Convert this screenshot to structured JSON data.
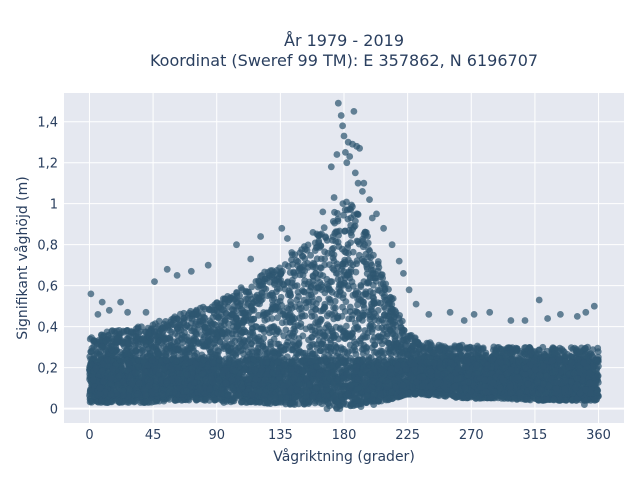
{
  "chart_data": {
    "type": "scatter",
    "title_lines": [
      "År 1979 - 2019",
      "Koordinat (Sweref 99 TM): E 357862, N 6196707"
    ],
    "xlabel": "Vågriktning (grader)",
    "ylabel": "Signifikant våghöjd (m)",
    "xlim": [
      -18,
      378
    ],
    "ylim": [
      -0.07,
      1.54
    ],
    "xticks": [
      0,
      45,
      90,
      135,
      180,
      225,
      270,
      315,
      360
    ],
    "xtick_labels": [
      "0",
      "45",
      "90",
      "135",
      "180",
      "225",
      "270",
      "315",
      "360"
    ],
    "yticks": [
      0,
      0.2,
      0.4,
      0.6,
      0.8,
      1.0,
      1.2,
      1.4
    ],
    "ytick_labels": [
      "0",
      "0,2",
      "0,4",
      "0,6",
      "0,8",
      "1",
      "1,2",
      "1,4"
    ],
    "marker_color": "#2e5670",
    "plot_bg": "#e5e8f0",
    "grid": true,
    "envelope": {
      "x": [
        0,
        15,
        30,
        45,
        60,
        75,
        90,
        105,
        120,
        135,
        150,
        160,
        170,
        175,
        180,
        185,
        190,
        200,
        210,
        220,
        225,
        235,
        250,
        270,
        290,
        315,
        340,
        360
      ],
      "y_upper": [
        0.35,
        0.38,
        0.4,
        0.42,
        0.45,
        0.49,
        0.52,
        0.58,
        0.65,
        0.72,
        0.8,
        0.85,
        0.92,
        0.98,
        1.02,
        1.0,
        0.95,
        0.8,
        0.62,
        0.45,
        0.37,
        0.33,
        0.31,
        0.31,
        0.3,
        0.3,
        0.3,
        0.3
      ],
      "y_lower": [
        0.03,
        0.03,
        0.03,
        0.03,
        0.04,
        0.04,
        0.04,
        0.03,
        0.03,
        0.02,
        0.02,
        0.02,
        0.01,
        0.0,
        0.01,
        0.01,
        0.02,
        0.03,
        0.04,
        0.06,
        0.07,
        0.07,
        0.06,
        0.05,
        0.05,
        0.04,
        0.04,
        0.04
      ]
    },
    "outliers": [
      {
        "x": 1,
        "y": 0.56
      },
      {
        "x": 6,
        "y": 0.46
      },
      {
        "x": 9,
        "y": 0.52
      },
      {
        "x": 14,
        "y": 0.48
      },
      {
        "x": 22,
        "y": 0.52
      },
      {
        "x": 27,
        "y": 0.47
      },
      {
        "x": 40,
        "y": 0.47
      },
      {
        "x": 46,
        "y": 0.62
      },
      {
        "x": 55,
        "y": 0.68
      },
      {
        "x": 62,
        "y": 0.65
      },
      {
        "x": 72,
        "y": 0.67
      },
      {
        "x": 84,
        "y": 0.7
      },
      {
        "x": 104,
        "y": 0.8
      },
      {
        "x": 114,
        "y": 0.73
      },
      {
        "x": 121,
        "y": 0.84
      },
      {
        "x": 136,
        "y": 0.88
      },
      {
        "x": 140,
        "y": 0.83
      },
      {
        "x": 158,
        "y": 0.86
      },
      {
        "x": 165,
        "y": 0.96
      },
      {
        "x": 171,
        "y": 1.18
      },
      {
        "x": 173,
        "y": 1.03
      },
      {
        "x": 175,
        "y": 1.24
      },
      {
        "x": 176,
        "y": 1.49
      },
      {
        "x": 178,
        "y": 1.43
      },
      {
        "x": 179,
        "y": 1.38
      },
      {
        "x": 180,
        "y": 1.33
      },
      {
        "x": 181,
        "y": 1.25
      },
      {
        "x": 182,
        "y": 1.2
      },
      {
        "x": 183,
        "y": 1.3
      },
      {
        "x": 184,
        "y": 1.23
      },
      {
        "x": 186,
        "y": 1.29
      },
      {
        "x": 187,
        "y": 1.45
      },
      {
        "x": 188,
        "y": 1.15
      },
      {
        "x": 189,
        "y": 1.28
      },
      {
        "x": 190,
        "y": 1.1
      },
      {
        "x": 191,
        "y": 1.27
      },
      {
        "x": 193,
        "y": 1.06
      },
      {
        "x": 194,
        "y": 1.1
      },
      {
        "x": 198,
        "y": 1.02
      },
      {
        "x": 200,
        "y": 0.93
      },
      {
        "x": 203,
        "y": 0.95
      },
      {
        "x": 208,
        "y": 0.88
      },
      {
        "x": 214,
        "y": 0.8
      },
      {
        "x": 219,
        "y": 0.72
      },
      {
        "x": 222,
        "y": 0.66
      },
      {
        "x": 226,
        "y": 0.58
      },
      {
        "x": 231,
        "y": 0.51
      },
      {
        "x": 240,
        "y": 0.46
      },
      {
        "x": 255,
        "y": 0.47
      },
      {
        "x": 265,
        "y": 0.43
      },
      {
        "x": 272,
        "y": 0.46
      },
      {
        "x": 283,
        "y": 0.47
      },
      {
        "x": 298,
        "y": 0.43
      },
      {
        "x": 308,
        "y": 0.43
      },
      {
        "x": 318,
        "y": 0.53
      },
      {
        "x": 324,
        "y": 0.44
      },
      {
        "x": 333,
        "y": 0.46
      },
      {
        "x": 345,
        "y": 0.45
      },
      {
        "x": 351,
        "y": 0.47
      },
      {
        "x": 357,
        "y": 0.5
      },
      {
        "x": 168,
        "y": 0.0
      },
      {
        "x": 177,
        "y": 0.0
      },
      {
        "x": 192,
        "y": 0.01
      },
      {
        "x": 201,
        "y": 0.02
      },
      {
        "x": 350,
        "y": 0.02
      },
      {
        "x": 13,
        "y": 0.03
      },
      {
        "x": 95,
        "y": 0.03
      }
    ]
  }
}
